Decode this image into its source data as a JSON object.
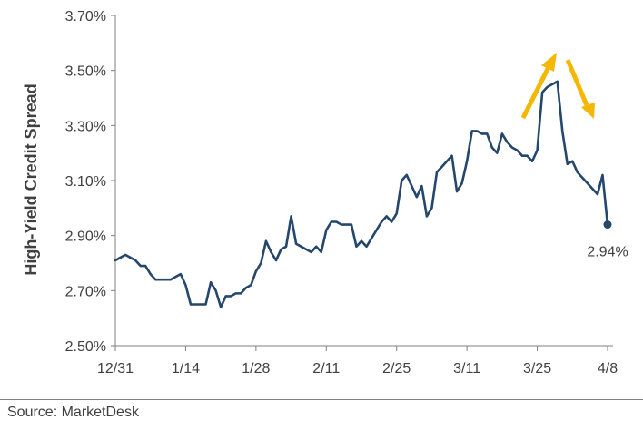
{
  "chart_data": {
    "type": "line",
    "ylabel": "High-Yield Credit Spread",
    "xlabel": "",
    "ylim": [
      2.5,
      3.7
    ],
    "y_ticks": [
      2.5,
      2.7,
      2.9,
      3.1,
      3.3,
      3.5,
      3.7
    ],
    "y_tick_labels": [
      "2.50%",
      "2.70%",
      "2.90%",
      "3.10%",
      "3.30%",
      "3.50%",
      "3.70%"
    ],
    "x_tick_labels": [
      "12/31",
      "1/14",
      "1/28",
      "2/11",
      "2/25",
      "3/11",
      "3/25",
      "4/8"
    ],
    "grid": false,
    "line_color": "#24476B",
    "arrow_color": "#F5B800",
    "end_value_label": "2.94%",
    "series": [
      {
        "x": [
          "12/31",
          "1/1",
          "1/2",
          "1/3",
          "1/4",
          "1/5",
          "1/6",
          "1/7",
          "1/8",
          "1/9",
          "1/10",
          "1/11",
          "1/12",
          "1/13",
          "1/14",
          "1/15",
          "1/16",
          "1/17",
          "1/18",
          "1/19",
          "1/20",
          "1/21",
          "1/22",
          "1/23",
          "1/24",
          "1/25",
          "1/26",
          "1/27",
          "1/28",
          "1/29",
          "1/30",
          "1/31",
          "2/1",
          "2/2",
          "2/3",
          "2/4",
          "2/5",
          "2/6",
          "2/7",
          "2/8",
          "2/9",
          "2/10",
          "2/11",
          "2/12",
          "2/13",
          "2/14",
          "2/15",
          "2/16",
          "2/17",
          "2/18",
          "2/19",
          "2/20",
          "2/21",
          "2/22",
          "2/23",
          "2/24",
          "2/25",
          "2/26",
          "2/27",
          "2/28",
          "3/1",
          "3/2",
          "3/3",
          "3/4",
          "3/5",
          "3/6",
          "3/7",
          "3/8",
          "3/9",
          "3/10",
          "3/11",
          "3/12",
          "3/13",
          "3/14",
          "3/15",
          "3/16",
          "3/17",
          "3/18",
          "3/19",
          "3/20",
          "3/21",
          "3/22",
          "3/23",
          "3/24",
          "3/25",
          "3/26",
          "3/27",
          "3/28",
          "3/29",
          "3/30",
          "3/31",
          "4/1",
          "4/2",
          "4/3",
          "4/4",
          "4/5",
          "4/6",
          "4/7",
          "4/8"
        ],
        "values": [
          2.81,
          2.82,
          2.83,
          2.82,
          2.81,
          2.79,
          2.79,
          2.76,
          2.74,
          2.74,
          2.74,
          2.74,
          2.75,
          2.76,
          2.72,
          2.65,
          2.65,
          2.65,
          2.65,
          2.73,
          2.7,
          2.64,
          2.68,
          2.68,
          2.69,
          2.69,
          2.71,
          2.72,
          2.77,
          2.8,
          2.88,
          2.84,
          2.81,
          2.85,
          2.86,
          2.97,
          2.87,
          2.86,
          2.85,
          2.84,
          2.86,
          2.84,
          2.92,
          2.95,
          2.95,
          2.94,
          2.94,
          2.94,
          2.86,
          2.88,
          2.86,
          2.89,
          2.92,
          2.95,
          2.97,
          2.95,
          2.98,
          3.1,
          3.12,
          3.08,
          3.04,
          3.08,
          2.97,
          3.0,
          3.13,
          3.15,
          3.17,
          3.19,
          3.06,
          3.09,
          3.17,
          3.28,
          3.28,
          3.27,
          3.27,
          3.22,
          3.2,
          3.27,
          3.24,
          3.22,
          3.21,
          3.19,
          3.19,
          3.17,
          3.21,
          3.42,
          3.44,
          3.45,
          3.46,
          3.28,
          3.16,
          3.17,
          3.13,
          3.11,
          3.09,
          3.07,
          3.05,
          3.12,
          2.94
        ]
      }
    ]
  },
  "source": "Source: MarketDesk"
}
